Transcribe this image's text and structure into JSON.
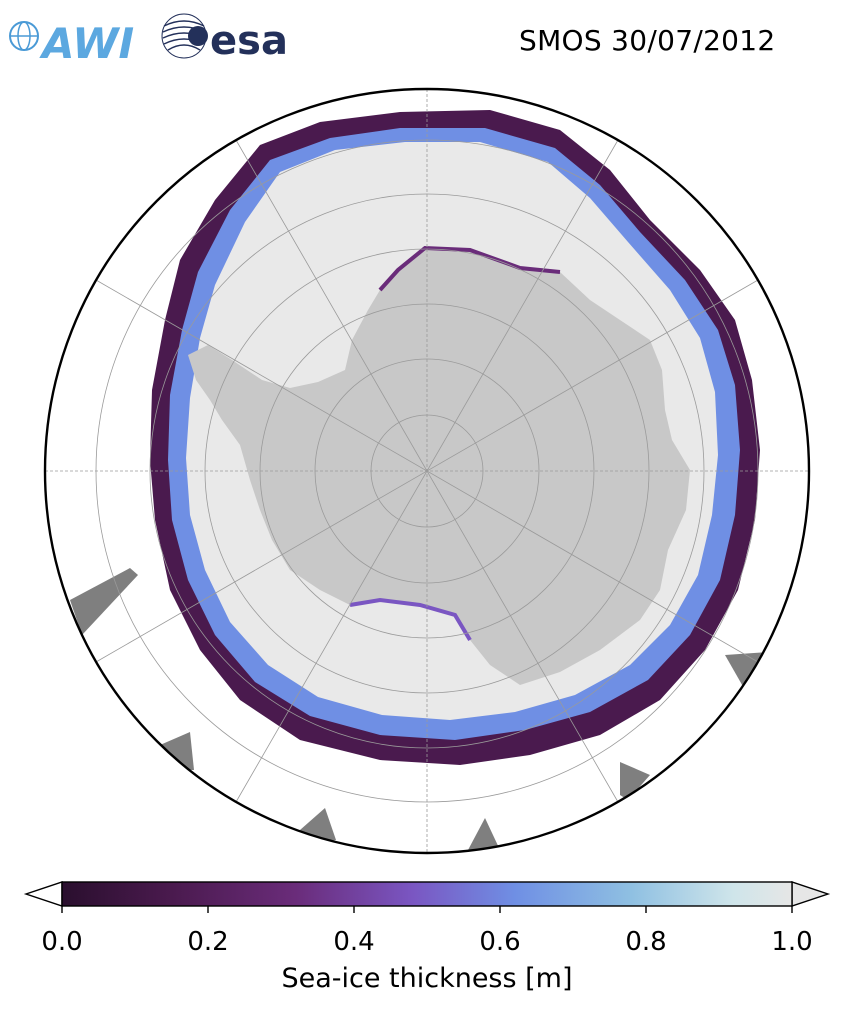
{
  "header": {
    "title": "SMOS 30/07/2012",
    "logo_awi": "AWI",
    "logo_esa": "esa"
  },
  "map": {
    "projection": "south-polar-stereographic",
    "region": "Antarctica / Southern Ocean",
    "variable": "sea-ice thickness",
    "colors": {
      "ocean": "#ffffff",
      "land": "#c8c8c8",
      "ice_thick": "#e9e9e9",
      "no_data": "#7f7f7f",
      "graticule": "#9a9a9a",
      "boundary": "#000000"
    }
  },
  "colorbar": {
    "label": "Sea-ice thickness [m]",
    "min": 0.0,
    "max": 1.0,
    "extend": "both",
    "ticks": [
      "0.0",
      "0.2",
      "0.4",
      "0.6",
      "0.8",
      "1.0"
    ],
    "stops": [
      "#2a0f2e",
      "#4a1a4e",
      "#6a2c7a",
      "#7a56c2",
      "#6f8fe4",
      "#8fc0e2",
      "#cfe5ea",
      "#e6e6e6"
    ]
  }
}
